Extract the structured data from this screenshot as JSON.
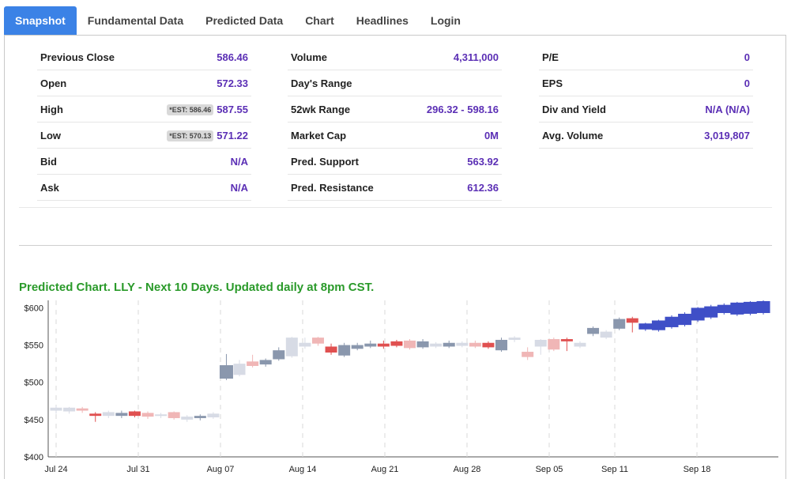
{
  "tabs": [
    {
      "label": "Snapshot",
      "active": true
    },
    {
      "label": "Fundamental Data",
      "active": false
    },
    {
      "label": "Predicted Data",
      "active": false
    },
    {
      "label": "Chart",
      "active": false
    },
    {
      "label": "Headlines",
      "active": false
    },
    {
      "label": "Login",
      "active": false
    }
  ],
  "stats": {
    "col1": [
      {
        "label": "Previous Close",
        "value": "586.46",
        "est": ""
      },
      {
        "label": "Open",
        "value": "572.33",
        "est": ""
      },
      {
        "label": "High",
        "value": "587.55",
        "est": "*EST: 586.46"
      },
      {
        "label": "Low",
        "value": "571.22",
        "est": "*EST: 570.13"
      },
      {
        "label": "Bid",
        "value": "N/A",
        "est": ""
      },
      {
        "label": "Ask",
        "value": "N/A",
        "est": ""
      }
    ],
    "col2": [
      {
        "label": "Volume",
        "value": "4,311,000"
      },
      {
        "label": "Day's Range",
        "value": ""
      },
      {
        "label": "52wk Range",
        "value": "296.32 - 598.16"
      },
      {
        "label": "Market Cap",
        "value": "0M"
      },
      {
        "label": "Pred. Support",
        "value": "563.92"
      },
      {
        "label": "Pred. Resistance",
        "value": "612.36"
      }
    ],
    "col3": [
      {
        "label": "P/E",
        "value": "0"
      },
      {
        "label": "EPS",
        "value": "0"
      },
      {
        "label": "Div and Yield",
        "value": "N/A (N/A)"
      },
      {
        "label": "Avg. Volume",
        "value": "3,019,807"
      }
    ]
  },
  "chart_title": "Predicted Chart. LLY - Next 10 Days. Updated daily at 8pm CST.",
  "colors": {
    "accent": "#3b82e6",
    "value": "#5b2fb5",
    "title": "#2a9a2a",
    "pred": "#3f4fc7",
    "upHist": "#8a97ad",
    "downHist": "#e05050",
    "lightUp": "#d7dbe5",
    "lightDown": "#f0b6b6"
  },
  "chart_data": {
    "type": "candlestick",
    "y_ticks": [
      "$600",
      "$550",
      "$500",
      "$450",
      "$400"
    ],
    "y_tick_values": [
      600,
      550,
      500,
      450,
      400
    ],
    "x_ticks": [
      "Jul 24",
      "Jul 31",
      "Aug 07",
      "Aug 14",
      "Aug 21",
      "Aug 28",
      "Sep 05",
      "Sep 11",
      "Sep 18"
    ],
    "ylim": [
      400,
      610
    ],
    "candles": [
      {
        "o": 462,
        "c": 466,
        "h": 469,
        "l": 458,
        "kind": "lu"
      },
      {
        "o": 461,
        "c": 466,
        "h": 467,
        "l": 458,
        "kind": "lu"
      },
      {
        "o": 465,
        "c": 462,
        "h": 467,
        "l": 459,
        "kind": "ld"
      },
      {
        "o": 458,
        "c": 455,
        "h": 460,
        "l": 447,
        "kind": "d"
      },
      {
        "o": 455,
        "c": 460,
        "h": 462,
        "l": 452,
        "kind": "lu"
      },
      {
        "o": 455,
        "c": 459,
        "h": 462,
        "l": 452,
        "kind": "u"
      },
      {
        "o": 461,
        "c": 455,
        "h": 462,
        "l": 453,
        "kind": "d"
      },
      {
        "o": 459,
        "c": 454,
        "h": 461,
        "l": 451,
        "kind": "ld"
      },
      {
        "o": 455,
        "c": 457,
        "h": 459,
        "l": 452,
        "kind": "lu"
      },
      {
        "o": 460,
        "c": 452,
        "h": 461,
        "l": 450,
        "kind": "ld"
      },
      {
        "o": 450,
        "c": 454,
        "h": 456,
        "l": 447,
        "kind": "lu"
      },
      {
        "o": 452,
        "c": 455,
        "h": 457,
        "l": 449,
        "kind": "u"
      },
      {
        "o": 453,
        "c": 458,
        "h": 460,
        "l": 451,
        "kind": "lu"
      },
      {
        "o": 505,
        "c": 523,
        "h": 538,
        "l": 503,
        "kind": "u"
      },
      {
        "o": 510,
        "c": 525,
        "h": 530,
        "l": 508,
        "kind": "lu"
      },
      {
        "o": 522,
        "c": 528,
        "h": 537,
        "l": 520,
        "kind": "ld"
      },
      {
        "o": 524,
        "c": 530,
        "h": 532,
        "l": 521,
        "kind": "u"
      },
      {
        "o": 531,
        "c": 543,
        "h": 547,
        "l": 529,
        "kind": "u"
      },
      {
        "o": 535,
        "c": 560,
        "h": 561,
        "l": 533,
        "kind": "lu"
      },
      {
        "o": 548,
        "c": 553,
        "h": 560,
        "l": 545,
        "kind": "lu"
      },
      {
        "o": 560,
        "c": 552,
        "h": 561,
        "l": 549,
        "kind": "ld"
      },
      {
        "o": 548,
        "c": 540,
        "h": 552,
        "l": 537,
        "kind": "d"
      },
      {
        "o": 536,
        "c": 550,
        "h": 553,
        "l": 534,
        "kind": "u"
      },
      {
        "o": 545,
        "c": 550,
        "h": 553,
        "l": 543,
        "kind": "u"
      },
      {
        "o": 548,
        "c": 552,
        "h": 556,
        "l": 546,
        "kind": "u"
      },
      {
        "o": 552,
        "c": 548,
        "h": 556,
        "l": 545,
        "kind": "d"
      },
      {
        "o": 555,
        "c": 549,
        "h": 557,
        "l": 547,
        "kind": "d"
      },
      {
        "o": 556,
        "c": 546,
        "h": 558,
        "l": 544,
        "kind": "ld"
      },
      {
        "o": 547,
        "c": 555,
        "h": 558,
        "l": 545,
        "kind": "u"
      },
      {
        "o": 548,
        "c": 552,
        "h": 554,
        "l": 546,
        "kind": "lu"
      },
      {
        "o": 548,
        "c": 553,
        "h": 556,
        "l": 546,
        "kind": "u"
      },
      {
        "o": 549,
        "c": 553,
        "h": 555,
        "l": 547,
        "kind": "lu"
      },
      {
        "o": 553,
        "c": 548,
        "h": 556,
        "l": 546,
        "kind": "ld"
      },
      {
        "o": 553,
        "c": 547,
        "h": 555,
        "l": 545,
        "kind": "d"
      },
      {
        "o": 543,
        "c": 557,
        "h": 560,
        "l": 541,
        "kind": "u"
      },
      {
        "o": 557,
        "c": 560,
        "h": 562,
        "l": 554,
        "kind": "lu"
      },
      {
        "o": 541,
        "c": 534,
        "h": 547,
        "l": 530,
        "kind": "ld"
      },
      {
        "o": 548,
        "c": 557,
        "h": 558,
        "l": 537,
        "kind": "lu"
      },
      {
        "o": 558,
        "c": 544,
        "h": 560,
        "l": 542,
        "kind": "ld"
      },
      {
        "o": 558,
        "c": 555,
        "h": 560,
        "l": 542,
        "kind": "d"
      },
      {
        "o": 548,
        "c": 553,
        "h": 555,
        "l": 546,
        "kind": "lu"
      },
      {
        "o": 565,
        "c": 573,
        "h": 575,
        "l": 562,
        "kind": "u"
      },
      {
        "o": 560,
        "c": 568,
        "h": 570,
        "l": 558,
        "kind": "lu"
      },
      {
        "o": 572,
        "c": 585,
        "h": 587,
        "l": 570,
        "kind": "u"
      },
      {
        "o": 586,
        "c": 580,
        "h": 588,
        "l": 567,
        "kind": "d"
      },
      {
        "o": 571,
        "c": 579,
        "h": 580,
        "l": 569,
        "kind": "p"
      },
      {
        "o": 570,
        "c": 583,
        "h": 584,
        "l": 568,
        "kind": "p"
      },
      {
        "o": 574,
        "c": 588,
        "h": 590,
        "l": 572,
        "kind": "p"
      },
      {
        "o": 577,
        "c": 592,
        "h": 594,
        "l": 575,
        "kind": "p"
      },
      {
        "o": 583,
        "c": 600,
        "h": 601,
        "l": 581,
        "kind": "p"
      },
      {
        "o": 587,
        "c": 602,
        "h": 604,
        "l": 585,
        "kind": "p"
      },
      {
        "o": 593,
        "c": 604,
        "h": 606,
        "l": 591,
        "kind": "p"
      },
      {
        "o": 591,
        "c": 607,
        "h": 608,
        "l": 589,
        "kind": "p"
      },
      {
        "o": 592,
        "c": 608,
        "h": 609,
        "l": 590,
        "kind": "p"
      },
      {
        "o": 593,
        "c": 609,
        "h": 610,
        "l": 591,
        "kind": "p"
      }
    ]
  }
}
